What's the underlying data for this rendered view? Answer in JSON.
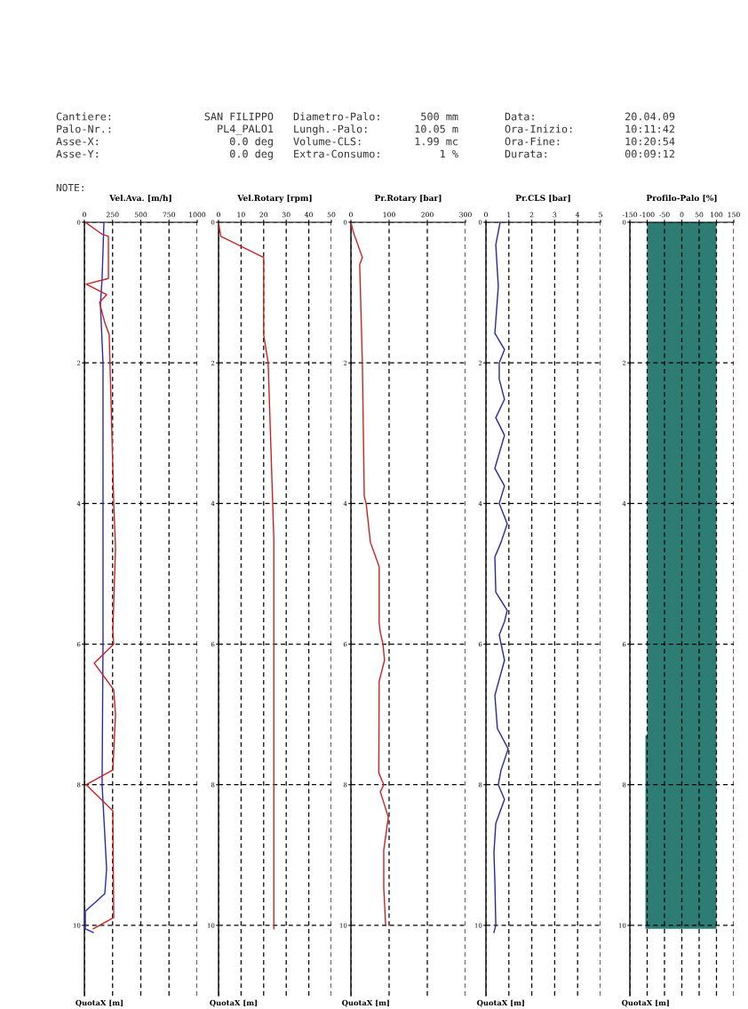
{
  "chart_data": [
    {
      "type": "other",
      "annotations": [
        "Cantiere:",
        "SAN FILIPPO",
        "Palo-Nr.:",
        "PL4_PALO1",
        "Asse-X:",
        "0.0 deg",
        "Asse-Y:",
        "0.0 deg",
        "Diametro-Palo:",
        "500 mm",
        "Lungh.-Palo:",
        "10.05 m",
        "Volume-CLS:",
        "1.99 mc",
        "Extra-Consumo:",
        "1 %",
        "Data:",
        "20.04.09",
        "Ora-Inizio:",
        "10:11:42",
        "Ora-Fine:",
        "10:20:54",
        "Durata:",
        "00:09:12",
        "NOTE:"
      ]
    },
    {
      "type": "line",
      "title": "Vel.Ava. [m/h]",
      "ylabel": "QuotaX [m]",
      "xlim": [
        0,
        1000
      ],
      "xticks": [
        0,
        250,
        500,
        750,
        1000
      ],
      "ylim": [
        11,
        0
      ],
      "yticks": [
        0,
        2,
        4,
        6,
        8,
        10
      ],
      "grid": true,
      "series": [
        {
          "color": "#2828c0",
          "x": [
            173,
            157,
            142,
            165,
            165,
            165,
            157,
            197,
            181,
            8,
            8,
            79
          ],
          "values": [
            0,
            0.8,
            1.17,
            2,
            4,
            6,
            8,
            9.2,
            9.55,
            9.8,
            10.05,
            10.1
          ]
        },
        {
          "color": "#d02020",
          "x": [
            8,
            157,
            213,
            213,
            16,
            197,
            134,
            181,
            220,
            252,
            260,
            276,
            252,
            260,
            87,
            260,
            276,
            252,
            16,
            252,
            260,
            79
          ],
          "values": [
            0,
            0.17,
            0.2,
            0.8,
            0.88,
            1.03,
            1.14,
            1.43,
            1.6,
            3.5,
            4,
            4.63,
            5.8,
            6,
            6.27,
            6.65,
            7,
            7.79,
            8,
            8.37,
            9.89,
            10.05
          ]
        }
      ]
    },
    {
      "type": "line",
      "title": "Vel.Rotary [rpm]",
      "ylabel": "QuotaX [m]",
      "xlim": [
        0,
        50
      ],
      "xticks": [
        0,
        10,
        20,
        30,
        40,
        50
      ],
      "ylim": [
        11,
        0
      ],
      "yticks": [
        0,
        2,
        4,
        6,
        8,
        10
      ],
      "grid": true,
      "series": [
        {
          "color": "#d02020",
          "x": [
            0,
            1,
            20,
            20,
            22,
            24,
            24.5,
            24.5
          ],
          "values": [
            0,
            0.2,
            0.5,
            1.6,
            2,
            4,
            4.5,
            10.05
          ]
        }
      ]
    },
    {
      "type": "line",
      "title": "Pr.Rotary [bar]",
      "ylabel": "QuotaX [m]",
      "xlim": [
        0,
        300
      ],
      "xticks": [
        0,
        100,
        200,
        300
      ],
      "ylim": [
        11,
        0
      ],
      "yticks": [
        0,
        2,
        4,
        6,
        8,
        10
      ],
      "grid": true,
      "series": [
        {
          "color": "#d02020",
          "x": [
            0,
            7,
            30,
            23,
            28,
            30,
            35,
            40,
            51,
            74,
            74,
            77,
            84,
            88,
            74,
            73,
            86,
            77,
            98,
            86,
            86,
            91
          ],
          "values": [
            0,
            0.15,
            0.5,
            0.6,
            1.6,
            2,
            3.9,
            4,
            4.55,
            4.9,
            5.7,
            5.83,
            6,
            6.23,
            6.53,
            7.83,
            8,
            8.1,
            8.46,
            8.93,
            9.47,
            10
          ]
        }
      ]
    },
    {
      "type": "line",
      "title": "Pr.CLS [bar]",
      "ylabel": "QuotaX [m]",
      "xlim": [
        0,
        5
      ],
      "xticks": [
        0,
        1,
        2,
        3,
        4,
        5
      ],
      "ylim": [
        11,
        0
      ],
      "yticks": [
        0,
        2,
        4,
        6,
        8,
        10
      ],
      "grid": true,
      "series": [
        {
          "color": "#2828a0",
          "x": [
            0.62,
            0.43,
            0.54,
            0.39,
            0.81,
            0.58,
            0.58,
            0.81,
            0.43,
            0.81,
            0.39,
            0.81,
            0.58,
            0.93,
            0.66,
            0.39,
            0.43,
            0.93,
            0.81,
            0.58,
            0.81,
            0.39,
            0.5,
            0.97,
            0.66,
            0.54,
            0.81,
            0.43,
            0.35,
            0.39,
            0.43,
            0.35
          ],
          "values": [
            0,
            0.32,
            0.91,
            1.58,
            1.81,
            2,
            2.23,
            2.52,
            2.78,
            3.03,
            3.5,
            3.75,
            4,
            4.29,
            4.55,
            4.76,
            5.26,
            5.52,
            5.68,
            5.87,
            6.23,
            6.73,
            7.2,
            7.49,
            7.79,
            8,
            8.21,
            8.55,
            8.96,
            9.38,
            10,
            10.1
          ]
        }
      ]
    },
    {
      "type": "area",
      "title": "Profilo-Palo [%]",
      "ylabel": "QuotaX [m]",
      "xlim": [
        -150,
        150
      ],
      "xticks": [
        -150,
        -100,
        -50,
        0,
        50,
        100,
        150
      ],
      "ylim": [
        11,
        0
      ],
      "yticks": [
        0,
        2,
        4,
        6,
        8,
        10
      ],
      "grid": true,
      "series": [
        {
          "color": "#2e7d74",
          "x": [
            -100,
            100,
            100,
            -105,
            -105,
            -100
          ],
          "values": [
            0,
            0,
            10.05,
            10.05,
            7.3,
            7.3
          ]
        }
      ]
    }
  ]
}
